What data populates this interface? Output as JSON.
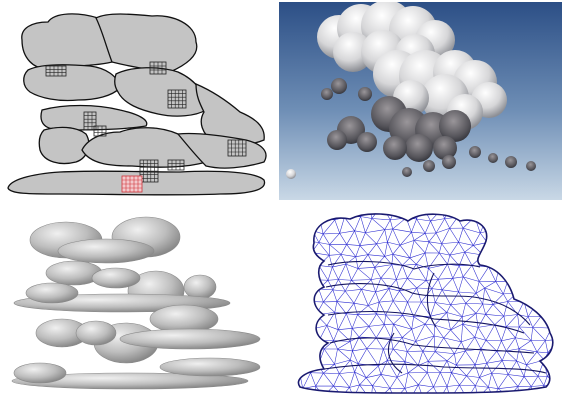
{
  "figure": {
    "panels": [
      {
        "id": "sketch",
        "name": "cloud-region-sketch"
      },
      {
        "id": "photo",
        "name": "cloud-photograph"
      },
      {
        "id": "render",
        "name": "shaded-3d-cloud-model"
      },
      {
        "id": "mesh",
        "name": "triangle-wireframe-mesh"
      }
    ]
  },
  "colors": {
    "region_fill": "#c4c4c4",
    "region_stroke": "#111111",
    "grid_stroke": "#222222",
    "grid_highlight": "#d0343a",
    "sky_top": "#2c4f86",
    "sky_bottom": "#c9d8e6",
    "mesh_stroke": "#2a2ad0",
    "render_fill": "#b9b9b9"
  }
}
